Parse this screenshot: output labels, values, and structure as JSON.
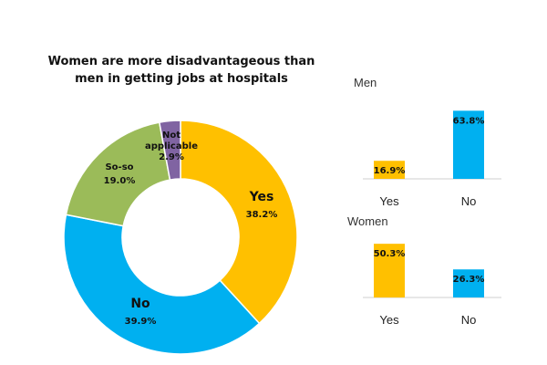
{
  "chart_data": [
    {
      "type": "pie",
      "subtype": "donut",
      "title_lines": [
        "Women are more disadvantageous than",
        "men in getting jobs at hospitals"
      ],
      "slices": [
        {
          "name": "Yes",
          "value": 38.2,
          "pct_label": "38.2%",
          "color": "#FFC000"
        },
        {
          "name": "No",
          "value": 39.9,
          "pct_label": "39.9%",
          "color": "#00B0F0"
        },
        {
          "name": "So-so",
          "value": 19.0,
          "pct_label": "19.0%",
          "color": "#9BBB59"
        },
        {
          "name": "Not applicable",
          "name_lines": [
            "Not",
            "applicable"
          ],
          "value": 2.9,
          "pct_label": "2.9%",
          "color": "#8064A2"
        }
      ]
    },
    {
      "type": "bar",
      "title": "Men",
      "categories": [
        "Yes",
        "No"
      ],
      "values": [
        16.9,
        63.8
      ],
      "value_labels": [
        "16.9%",
        "63.8%"
      ],
      "colors": [
        "#FFC000",
        "#00B0F0"
      ],
      "ylim": [
        0,
        70
      ]
    },
    {
      "type": "bar",
      "title": "Women",
      "categories": [
        "Yes",
        "No"
      ],
      "values": [
        50.3,
        26.3
      ],
      "value_labels": [
        "50.3%",
        "26.3%"
      ],
      "colors": [
        "#FFC000",
        "#00B0F0"
      ],
      "ylim": [
        0,
        70
      ]
    }
  ]
}
